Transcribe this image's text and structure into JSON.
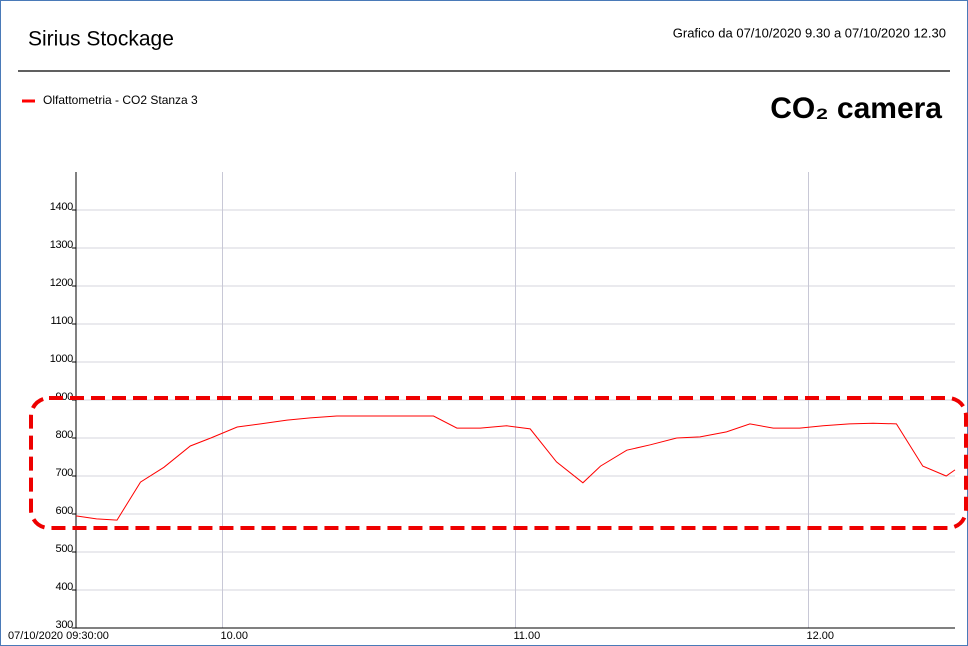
{
  "chart_data": {
    "type": "line",
    "title": "Sirius Stockage",
    "subtitle": "Grafico da 07/10/2020 9.30 a 07/10/2020 12.30",
    "annotation": "CO₂ camera",
    "x": [
      9.5,
      9.57,
      9.64,
      9.72,
      9.8,
      9.89,
      9.96,
      10.05,
      10.13,
      10.22,
      10.3,
      10.39,
      10.47,
      10.56,
      10.65,
      10.72,
      10.8,
      10.88,
      10.97,
      11.05,
      11.14,
      11.23,
      11.29,
      11.38,
      11.46,
      11.55,
      11.63,
      11.72,
      11.8,
      11.88,
      11.97,
      12.05,
      12.14,
      12.22,
      12.3,
      12.39,
      12.47,
      12.5
    ],
    "series": [
      {
        "name": "Olfattometria - CO2 Stanza 3",
        "color": "#ff0000",
        "values": [
          595,
          587,
          584,
          684,
          723,
          779,
          800,
          829,
          837,
          847,
          853,
          858,
          858,
          858,
          858,
          858,
          826,
          826,
          832,
          824,
          737,
          682,
          726,
          768,
          782,
          800,
          803,
          816,
          837,
          826,
          826,
          832,
          837,
          839,
          837,
          726,
          700,
          716
        ]
      }
    ],
    "xlim": [
      9.5,
      12.5
    ],
    "xticks": [
      {
        "value": 9.5,
        "label": "07/10/2020 09:30:00"
      },
      {
        "value": 10,
        "label": "10.00"
      },
      {
        "value": 11,
        "label": "11.00"
      },
      {
        "value": 12,
        "label": "12.00"
      }
    ],
    "ylim": [
      300,
      1500
    ],
    "yticks": [
      300,
      400,
      500,
      600,
      700,
      800,
      900,
      1000,
      1100,
      1200,
      1300,
      1400
    ],
    "grid": true
  }
}
